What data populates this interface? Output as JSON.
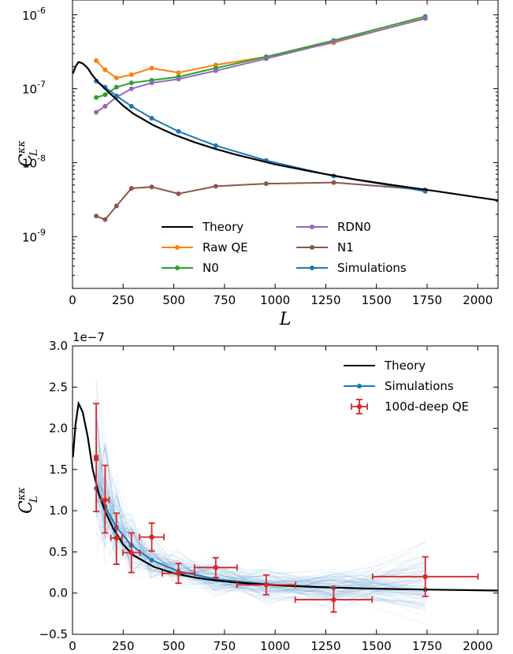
{
  "chart_data": [
    {
      "type": "line",
      "panel": "top",
      "yscale": "log",
      "xlim": [
        0,
        2100
      ],
      "ylim_log10": [
        -9.7,
        -5.8
      ],
      "xlabel": "L",
      "ylabel": "C_L^{κκ}",
      "ylabel_main": "C",
      "ylabel_sup": "κκ",
      "ylabel_sub": "L",
      "xticks": [
        0,
        250,
        500,
        750,
        1000,
        1250,
        1500,
        1750,
        2000
      ],
      "xtick_labels": [
        "0",
        "250",
        "500",
        "750",
        "1000",
        "1250",
        "1500",
        "1750",
        "2000"
      ],
      "yticks": [
        {
          "exp": -9,
          "base": "10",
          "sup": "-9"
        },
        {
          "exp": -8,
          "base": "10",
          "sup": "-8"
        },
        {
          "exp": -7,
          "base": "10",
          "sup": "-7"
        },
        {
          "exp": -6,
          "base": "10",
          "sup": "-6"
        }
      ],
      "theory": {
        "name": "Theory",
        "color": "#000000",
        "x": [
          2,
          15,
          30,
          50,
          75,
          100,
          130,
          160,
          200,
          250,
          300,
          400,
          500,
          600,
          700,
          800,
          1000,
          1200,
          1400,
          1600,
          1800,
          2000,
          2100
        ],
        "y": [
          1.6e-07,
          2e-07,
          2.3e-07,
          2.2e-07,
          1.9e-07,
          1.5e-07,
          1.2e-07,
          1e-07,
          7.9e-08,
          5.9e-08,
          4.6e-08,
          3.2e-08,
          2.4e-08,
          1.9e-08,
          1.55e-08,
          1.3e-08,
          9.5e-09,
          7.4e-09,
          5.9e-09,
          4.9e-09,
          4.1e-09,
          3.4e-09,
          3.1e-09
        ]
      },
      "series": [
        {
          "name": "Raw QE",
          "color": "#ff7f0e",
          "x": [
            117,
            161,
            217,
            291,
            391,
            523,
            707,
            956,
            1289,
            1741
          ],
          "y": [
            2.4e-07,
            1.8e-07,
            1.4e-07,
            1.55e-07,
            1.9e-07,
            1.65e-07,
            2.1e-07,
            2.7e-07,
            4.2e-07,
            9e-07
          ]
        },
        {
          "name": "N0",
          "color": "#2ca02c",
          "x": [
            117,
            161,
            217,
            291,
            391,
            523,
            707,
            956,
            1289,
            1741
          ],
          "y": [
            7.6e-08,
            8.3e-08,
            1.05e-07,
            1.2e-07,
            1.3e-07,
            1.45e-07,
            1.9e-07,
            2.7e-07,
            4.5e-07,
            9.5e-07
          ]
        },
        {
          "name": "RDN0",
          "color": "#9467bd",
          "x": [
            117,
            161,
            217,
            291,
            391,
            523,
            707,
            956,
            1289,
            1741
          ],
          "y": [
            4.8e-08,
            5.8e-08,
            7.7e-08,
            1e-07,
            1.2e-07,
            1.35e-07,
            1.75e-07,
            2.55e-07,
            4.3e-07,
            8.9e-07
          ]
        },
        {
          "name": "N1",
          "color": "#8c564b",
          "x": [
            117,
            161,
            217,
            291,
            391,
            523,
            707,
            956,
            1289,
            1741
          ],
          "y": [
            1.9e-09,
            1.7e-09,
            2.6e-09,
            4.5e-09,
            4.7e-09,
            3.8e-09,
            4.8e-09,
            5.2e-09,
            5.4e-09,
            4.3e-09
          ]
        },
        {
          "name": "Simulations",
          "color": "#1f77b4",
          "x": [
            117,
            161,
            217,
            291,
            391,
            523,
            707,
            956,
            1289,
            1741
          ],
          "y": [
            1.27e-07,
            1.05e-07,
            8e-08,
            5.8e-08,
            4e-08,
            2.65e-08,
            1.7e-08,
            1.07e-08,
            6.6e-09,
            4.1e-09
          ]
        }
      ],
      "legend": {
        "placement": "lower-center",
        "left_column": [
          "Theory",
          "Raw QE",
          "N0"
        ],
        "right_column": [
          "RDN0",
          "N1",
          "Simulations"
        ]
      }
    },
    {
      "type": "line",
      "panel": "bottom",
      "yscale": "linear",
      "xlim": [
        0,
        2100
      ],
      "ylim": [
        -0.5,
        3.0
      ],
      "offset_text": "1e−7",
      "ylabel": "C_L^{κκ}",
      "ylabel_main": "C",
      "ylabel_sup": "κκ",
      "ylabel_sub": "L",
      "xticks": [
        0,
        250,
        500,
        750,
        1000,
        1250,
        1500,
        1750,
        2000
      ],
      "xtick_labels": [
        "0",
        "250",
        "500",
        "750",
        "1000",
        "1250",
        "1500",
        "1750",
        "2000"
      ],
      "yticks": [
        -0.5,
        0.0,
        0.5,
        1.0,
        1.5,
        2.0,
        2.5,
        3.0
      ],
      "ytick_labels": [
        "−0.5",
        "0.0",
        "0.5",
        "1.0",
        "1.5",
        "2.0",
        "2.5",
        "3.0"
      ],
      "theory": {
        "name": "Theory",
        "color": "#000000",
        "x": [
          2,
          15,
          30,
          50,
          75,
          100,
          130,
          160,
          200,
          250,
          300,
          400,
          500,
          600,
          700,
          800,
          1000,
          1200,
          1400,
          1600,
          1800,
          2000,
          2100
        ],
        "y": [
          1.65,
          2.05,
          2.3,
          2.2,
          1.9,
          1.5,
          1.2,
          1.0,
          0.79,
          0.59,
          0.46,
          0.32,
          0.24,
          0.19,
          0.155,
          0.13,
          0.095,
          0.074,
          0.059,
          0.049,
          0.041,
          0.034,
          0.031
        ]
      },
      "simulations": {
        "name": "Simulations",
        "color": "#1f77b4",
        "x": [
          117,
          161,
          217,
          291,
          391,
          523,
          707,
          956,
          1289,
          1741
        ],
        "y": [
          1.27,
          1.05,
          0.8,
          0.58,
          0.4,
          0.265,
          0.17,
          0.107,
          0.066,
          0.041
        ],
        "scatter_top": [
          3.0,
          2.4,
          1.6,
          1.1,
          0.85,
          0.6,
          0.45,
          0.35,
          0.42,
          0.82
        ],
        "scatter_bottom": [
          0.35,
          0.3,
          0.2,
          0.12,
          0.05,
          -0.05,
          -0.1,
          -0.2,
          -0.3,
          -0.45
        ]
      },
      "measurements": {
        "name": "100d-deep QE",
        "color": "#d62728",
        "points": [
          {
            "x": 117,
            "y": 1.64,
            "xerr": [
              8,
              8
            ],
            "yerr": [
              0.65,
              0.66
            ]
          },
          {
            "x": 161,
            "y": 1.13,
            "xerr": [
              20,
              20
            ],
            "yerr": [
              0.4,
              0.42
            ]
          },
          {
            "x": 217,
            "y": 0.67,
            "xerr": [
              28,
              28
            ],
            "yerr": [
              0.32,
              0.3
            ]
          },
          {
            "x": 291,
            "y": 0.49,
            "xerr": [
              42,
              42
            ],
            "yerr": [
              0.24,
              0.24
            ]
          },
          {
            "x": 391,
            "y": 0.68,
            "xerr": [
              60,
              60
            ],
            "yerr": [
              0.17,
              0.17
            ]
          },
          {
            "x": 523,
            "y": 0.24,
            "xerr": [
              80,
              80
            ],
            "yerr": [
              0.12,
              0.12
            ]
          },
          {
            "x": 707,
            "y": 0.31,
            "xerr": [
              105,
              105
            ],
            "yerr": [
              0.12,
              0.12
            ]
          },
          {
            "x": 956,
            "y": 0.1,
            "xerr": [
              145,
              145
            ],
            "yerr": [
              0.12,
              0.12
            ]
          },
          {
            "x": 1289,
            "y": -0.08,
            "xerr": [
              190,
              190
            ],
            "yerr": [
              0.15,
              0.15
            ]
          },
          {
            "x": 1741,
            "y": 0.2,
            "xerr": [
              260,
              260
            ],
            "yerr": [
              0.24,
              0.24
            ]
          }
        ]
      },
      "legend": {
        "placement": "upper-right",
        "entries": [
          "Theory",
          "Simulations",
          "100d-deep QE"
        ]
      }
    }
  ]
}
